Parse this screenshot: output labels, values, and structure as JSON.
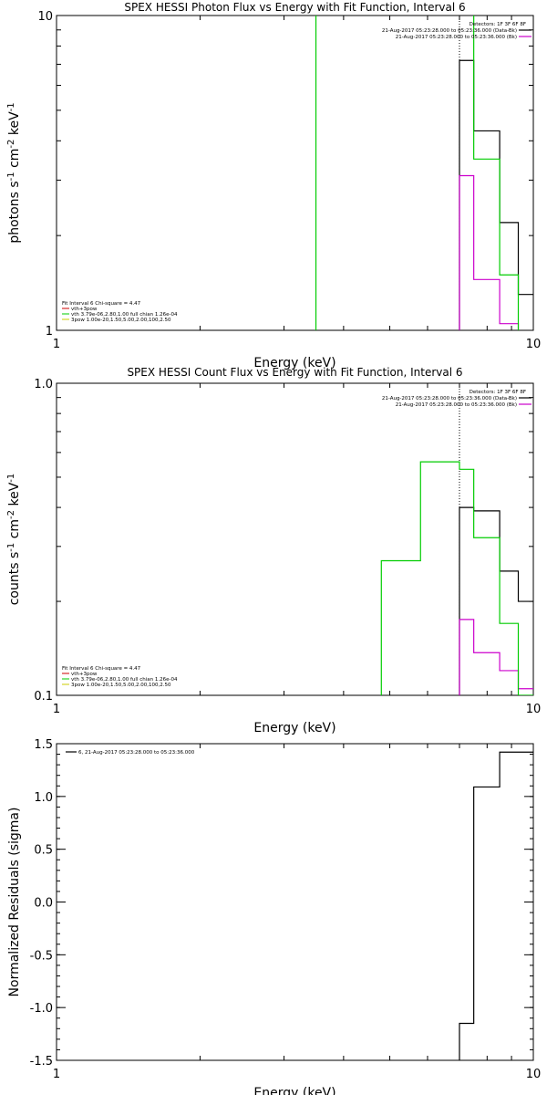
{
  "chart_data": [
    {
      "type": "line",
      "title": "SPEX HESSI Photon Flux vs Energy with Fit Function, Interval 6",
      "xlabel": "Energy (keV)",
      "ylabel": "photons s$^{-1}$ cm$^{-2}$ keV$^{-1}$",
      "xscale": "log",
      "yscale": "log",
      "xlim": [
        1,
        10
      ],
      "ylim": [
        1,
        10
      ],
      "xticks": [
        {
          "v": 1,
          "label": "1"
        },
        {
          "v": 10,
          "label": "10"
        }
      ],
      "yticks": [
        {
          "v": 1,
          "label": "1"
        },
        {
          "v": 10,
          "label": "10"
        }
      ],
      "vline": 7.0,
      "legend_top": {
        "header": "Detectors: 1F 3F 6F 8F",
        "lines": [
          {
            "text": "21-Aug-2017 05:23:28.000 to 05:23:36.000 (Data-Bk)",
            "color": "#000000"
          },
          {
            "text": "21-Aug-2017 05:23:28.000 to 05:23:36.000 (Bk)",
            "color": "#cc00cc"
          }
        ]
      },
      "legend_bottom": {
        "header": "Fit Interval 6   Chi-square = 4.47",
        "lines": [
          {
            "text": "vth+3pow",
            "color": "#cc0000"
          },
          {
            "text": "vth 3.79e-06,2.80,1.00  full chian 1.26e-04",
            "color": "#00cc00"
          },
          {
            "text": "3pow 1.00e-20,1.50,5.00,2.00,100,2.50",
            "color": "#cccc00"
          }
        ]
      },
      "series": [
        {
          "name": "Data-Bk",
          "color": "#000000",
          "steps": [
            [
              7.0,
              7.5,
              7.2
            ],
            [
              7.5,
              8.5,
              4.3
            ],
            [
              8.5,
              9.3,
              2.2
            ],
            [
              9.3,
              10,
              1.3
            ]
          ]
        },
        {
          "name": "Bk",
          "color": "#cc00cc",
          "steps": [
            [
              7.0,
              7.5,
              3.1
            ],
            [
              7.5,
              8.5,
              1.45
            ],
            [
              8.5,
              9.3,
              1.05
            ],
            [
              9.3,
              10,
              0.97
            ]
          ]
        },
        {
          "name": "vth",
          "color": "#00cc00",
          "steps": [
            [
              3.5,
              7.0,
              10.5
            ],
            [
              7.0,
              7.5,
              10.5
            ],
            [
              7.5,
              8.5,
              3.5
            ],
            [
              8.5,
              9.3,
              1.5
            ],
            [
              9.3,
              10,
              0.97
            ]
          ]
        }
      ]
    },
    {
      "type": "line",
      "title": "SPEX HESSI Count Flux vs Energy with Fit Function, Interval 6",
      "xlabel": "Energy (keV)",
      "ylabel": "counts s$^{-1}$ cm$^{-2}$ keV$^{-1}$",
      "xscale": "log",
      "yscale": "log",
      "xlim": [
        1,
        10
      ],
      "ylim": [
        0.1,
        1.0
      ],
      "xticks": [
        {
          "v": 1,
          "label": "1"
        },
        {
          "v": 10,
          "label": "10"
        }
      ],
      "yticks": [
        {
          "v": 0.1,
          "label": "0.1"
        },
        {
          "v": 1.0,
          "label": "1.0"
        }
      ],
      "vline": 7.0,
      "legend_top": {
        "header": "Detectors: 1F 3F 6F 8F",
        "lines": [
          {
            "text": "21-Aug-2017 05:23:28.000 to 05:23:36.000 (Data-Bk)",
            "color": "#000000"
          },
          {
            "text": "21-Aug-2017 05:23:28.000 to 05:23:36.000 (Bk)",
            "color": "#cc00cc"
          }
        ]
      },
      "legend_bottom": {
        "header": "Fit Interval 6   Chi-square = 4.47",
        "lines": [
          {
            "text": "vth+3pow",
            "color": "#cc0000"
          },
          {
            "text": "vth 3.79e-06,2.80,1.00  full chian 1.26e-04",
            "color": "#00cc00"
          },
          {
            "text": "3pow 1.00e-20,1.50,5.00,2.00,100,2.50",
            "color": "#cccc00"
          }
        ]
      },
      "series": [
        {
          "name": "Data-Bk",
          "color": "#000000",
          "steps": [
            [
              7.0,
              7.5,
              0.4
            ],
            [
              7.5,
              8.5,
              0.39
            ],
            [
              8.5,
              9.3,
              0.25
            ],
            [
              9.3,
              10,
              0.2
            ]
          ]
        },
        {
          "name": "Bk",
          "color": "#cc00cc",
          "steps": [
            [
              7.0,
              7.5,
              0.175
            ],
            [
              7.5,
              8.5,
              0.137
            ],
            [
              8.5,
              9.3,
              0.12
            ],
            [
              9.3,
              10,
              0.105
            ]
          ]
        },
        {
          "name": "vth",
          "color": "#00cc00",
          "steps": [
            [
              4.8,
              5.8,
              0.27
            ],
            [
              5.8,
              7.0,
              0.56
            ],
            [
              7.0,
              7.5,
              0.53
            ],
            [
              7.5,
              8.5,
              0.32
            ],
            [
              8.5,
              9.3,
              0.17
            ],
            [
              9.3,
              10,
              0.1
            ]
          ]
        }
      ]
    },
    {
      "type": "line",
      "title": "",
      "xlabel": "Energy (keV)",
      "ylabel": "Normalized Residuals (sigma)",
      "xscale": "log",
      "yscale": "linear",
      "xlim": [
        1,
        10
      ],
      "ylim": [
        -1.5,
        1.5
      ],
      "xticks": [
        {
          "v": 1,
          "label": "1"
        },
        {
          "v": 10,
          "label": "10"
        }
      ],
      "yticks": [
        {
          "v": 1.5,
          "label": "1.5"
        },
        {
          "v": 1.0,
          "label": "1.0"
        },
        {
          "v": 0.5,
          "label": "0.5"
        },
        {
          "v": 0.0,
          "label": "0.0"
        },
        {
          "v": -0.5,
          "label": "-0.5"
        },
        {
          "v": -1.0,
          "label": "-1.0"
        },
        {
          "v": -1.5,
          "label": "-1.5"
        }
      ],
      "legend_top": {
        "header": "",
        "lines": [
          {
            "text": "6, 21-Aug-2017 05:23:28.000 to 05:23:36.000",
            "color": "#000000"
          }
        ]
      },
      "series": [
        {
          "name": "6, 21-Aug-2017 05:23:28.000 to 05:23:36.000",
          "color": "#000000",
          "steps": [
            [
              7.0,
              7.5,
              -1.15
            ],
            [
              7.5,
              8.5,
              1.09
            ],
            [
              8.5,
              9.3,
              1.42
            ],
            [
              9.3,
              10,
              1.42
            ]
          ]
        }
      ]
    }
  ]
}
